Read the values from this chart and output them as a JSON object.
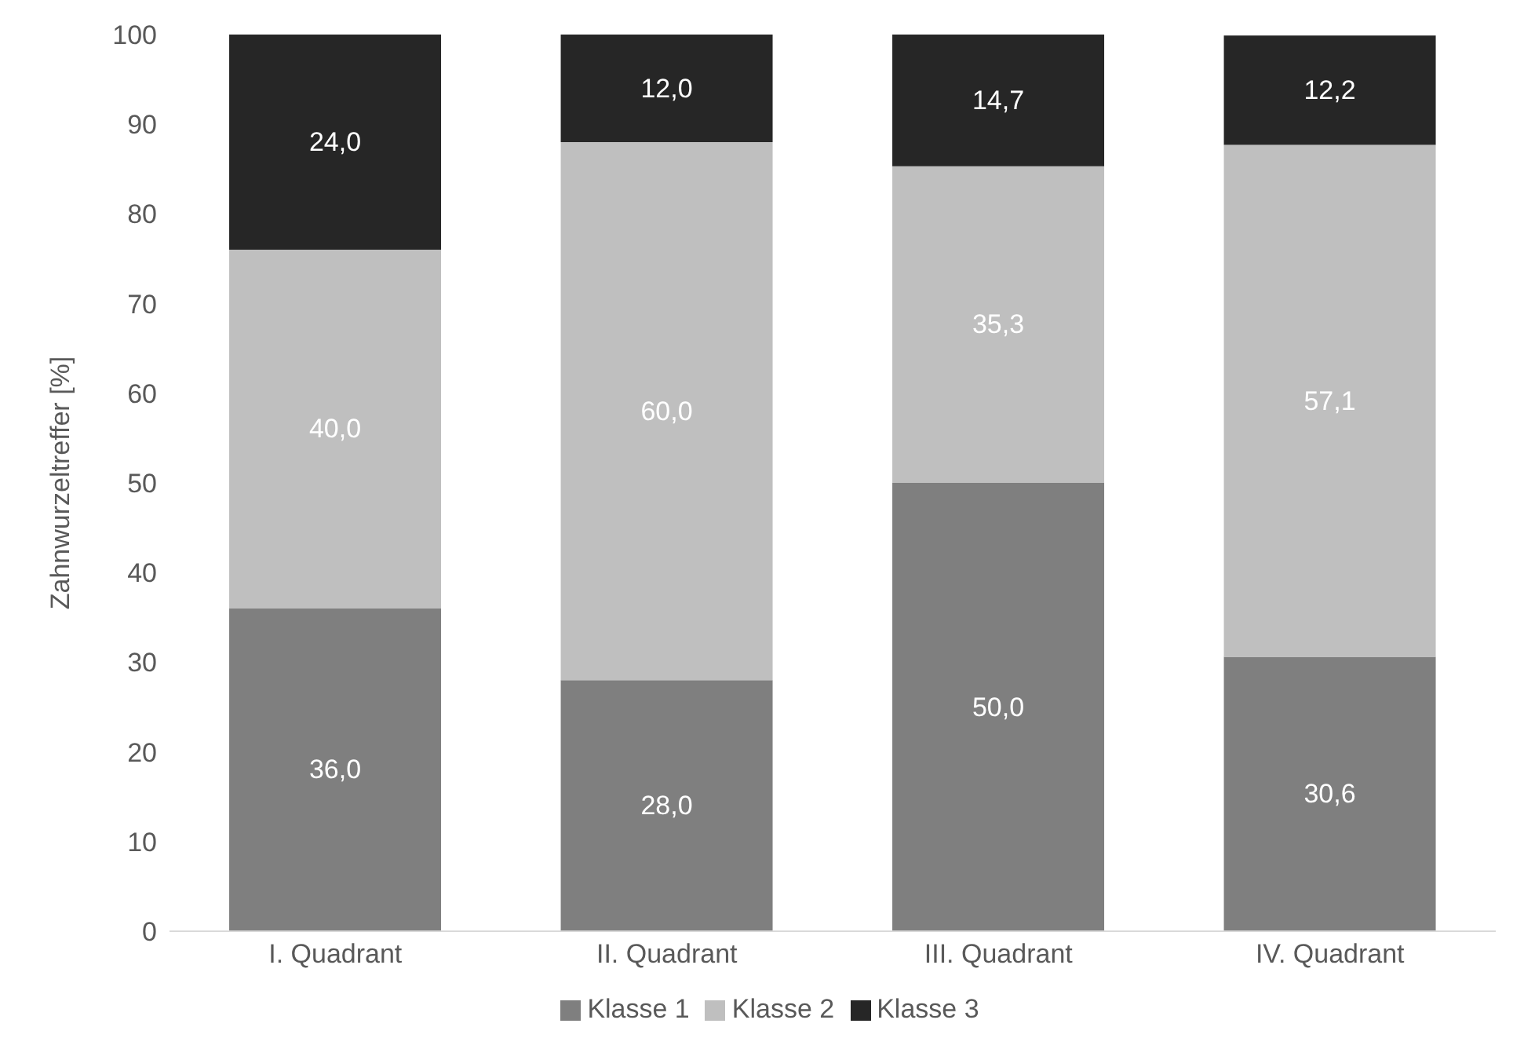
{
  "chart_data": {
    "type": "bar",
    "stacked": true,
    "ylabel": "Zahnwurzeltreffer [%]",
    "categories": [
      "I. Quadrant",
      "II. Quadrant",
      "III. Quadrant",
      "IV. Quadrant"
    ],
    "series": [
      {
        "name": "Klasse 1",
        "color": "#7f7f7f",
        "values": [
          36.0,
          28.0,
          50.0,
          30.6
        ],
        "value_labels": [
          "36,0",
          "28,0",
          "50,0",
          "30,6"
        ]
      },
      {
        "name": "Klasse 2",
        "color": "#bfbfbf",
        "values": [
          40.0,
          60.0,
          35.3,
          57.1
        ],
        "value_labels": [
          "40,0",
          "60,0",
          "35,3",
          "57,1"
        ]
      },
      {
        "name": "Klasse 3",
        "color": "#262626",
        "values": [
          24.0,
          12.0,
          14.7,
          12.2
        ],
        "value_labels": [
          "24,0",
          "12,0",
          "14,7",
          "12,2"
        ]
      }
    ],
    "ylim": [
      0,
      100
    ],
    "yticks": [
      0,
      10,
      20,
      30,
      40,
      50,
      60,
      70,
      80,
      90,
      100
    ],
    "grid": false,
    "legend": "bottom"
  }
}
